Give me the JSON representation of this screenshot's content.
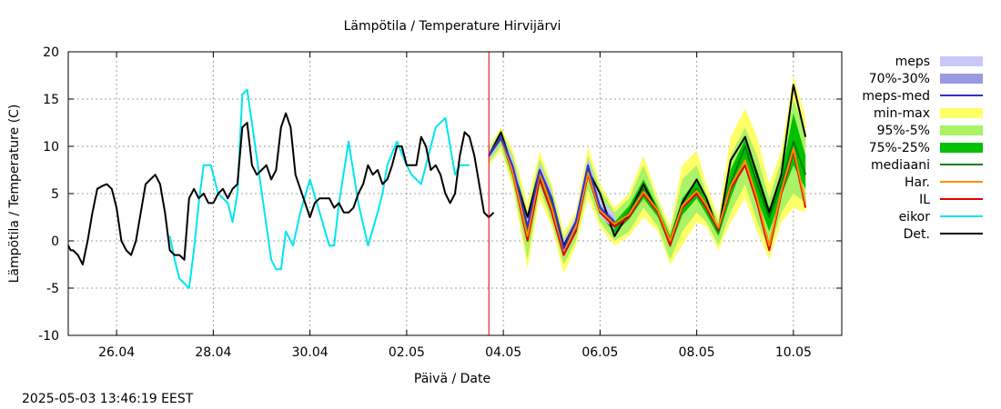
{
  "chart_data": {
    "type": "line",
    "title": "Lämpötila / Temperature   Hirvijärvi",
    "xlabel": "Päivä / Date",
    "ylabel": "Lämpötila / Temperature (C)",
    "ylim": [
      -10,
      20
    ],
    "yticks": [
      -10,
      -5,
      0,
      5,
      10,
      15,
      20
    ],
    "xlim": [
      0,
      16
    ],
    "xticks": [
      {
        "x": 1,
        "label": "26.04"
      },
      {
        "x": 3,
        "label": "28.04"
      },
      {
        "x": 5,
        "label": "30.04"
      },
      {
        "x": 7,
        "label": "02.05"
      },
      {
        "x": 9,
        "label": "04.05"
      },
      {
        "x": 11,
        "label": "06.05"
      },
      {
        "x": 13,
        "label": "08.05"
      },
      {
        "x": 15,
        "label": "10.05"
      }
    ],
    "grid": true,
    "legend_position": "right",
    "now_marker_x": 8.7,
    "timestamp": "2025-05-03 13:46:19 EEST",
    "legend": [
      {
        "label": "meps",
        "type": "box",
        "color": "#c8c8f8"
      },
      {
        "label": "70%-30%",
        "type": "box",
        "color": "#9a9ae0"
      },
      {
        "label": "meps-med",
        "type": "line",
        "color": "#3232c8"
      },
      {
        "label": "min-max",
        "type": "box",
        "color": "#ffff66"
      },
      {
        "label": "95%-5%",
        "type": "box",
        "color": "#aaf266"
      },
      {
        "label": "75%-25%",
        "type": "box",
        "color": "#00c000"
      },
      {
        "label": "mediaani",
        "type": "line",
        "color": "#008000"
      },
      {
        "label": "Har.",
        "type": "line",
        "color": "#ff8c00"
      },
      {
        "label": "IL",
        "type": "line",
        "color": "#e00000"
      },
      {
        "label": "eikor",
        "type": "line",
        "color": "#00e5ee"
      },
      {
        "label": "Det.",
        "type": "line",
        "color": "#000000"
      }
    ],
    "series": [
      {
        "name": "eikor",
        "color": "#00e5ee",
        "x": [
          2.1,
          2.2,
          2.3,
          2.5,
          2.6,
          2.7,
          2.8,
          2.95,
          3.1,
          3.3,
          3.4,
          3.5,
          3.6,
          3.7,
          4.2,
          4.3,
          4.4,
          4.5,
          4.65,
          4.8,
          5.0,
          5.4,
          5.5,
          5.6,
          5.8,
          6.0,
          6.2,
          6.4,
          6.5,
          6.6,
          6.8,
          7.0,
          7.1,
          7.3,
          7.4,
          7.6,
          7.8,
          8.0,
          8.1,
          8.3
        ],
        "y": [
          0.5,
          -2,
          -4,
          -5,
          -1,
          4,
          8,
          8,
          5,
          4,
          2,
          5,
          15.5,
          16,
          -2,
          -3,
          -3,
          1,
          -0.5,
          3,
          6.5,
          -0.5,
          -0.5,
          4,
          10.5,
          4,
          -0.5,
          3,
          5,
          8,
          10.5,
          8,
          7,
          6,
          8,
          12,
          13,
          7,
          8,
          8
        ]
      },
      {
        "name": "Det.",
        "color": "#000000",
        "x": [
          0,
          0.05,
          0.1,
          0.2,
          0.3,
          0.4,
          0.5,
          0.6,
          0.7,
          0.8,
          0.9,
          1.0,
          1.1,
          1.2,
          1.3,
          1.4,
          1.5,
          1.6,
          1.7,
          1.8,
          1.9,
          2.0,
          2.1,
          2.2,
          2.3,
          2.4,
          2.5,
          2.6,
          2.7,
          2.8,
          2.9,
          3.0,
          3.1,
          3.2,
          3.3,
          3.4,
          3.5,
          3.6,
          3.7,
          3.8,
          3.9,
          4.0,
          4.1,
          4.2,
          4.3,
          4.4,
          4.5,
          4.6,
          4.7,
          4.8,
          4.9,
          5.0,
          5.1,
          5.2,
          5.3,
          5.4,
          5.5,
          5.6,
          5.7,
          5.8,
          5.9,
          6.0,
          6.1,
          6.2,
          6.3,
          6.4,
          6.5,
          6.6,
          6.7,
          6.8,
          6.9,
          7.0,
          7.1,
          7.2,
          7.3,
          7.4,
          7.5,
          7.6,
          7.7,
          7.8,
          7.9,
          8.0,
          8.1,
          8.2,
          8.3,
          8.4,
          8.5,
          8.6,
          8.7,
          8.8
        ],
        "y": [
          -0.5,
          -1,
          -1,
          -1.5,
          -2.5,
          0,
          3,
          5.5,
          5.8,
          6,
          5.5,
          3.5,
          0,
          -1,
          -1.5,
          0,
          3,
          6,
          6.5,
          7,
          6,
          3,
          -1,
          -1.5,
          -1.5,
          -2,
          4.5,
          5.5,
          4.5,
          5,
          4,
          4,
          5,
          5.5,
          4.5,
          5.5,
          6,
          12,
          12.5,
          8,
          7,
          7.5,
          8,
          6.5,
          7.5,
          12,
          13.5,
          12,
          7,
          5.5,
          4,
          2.5,
          4,
          4.5,
          4.5,
          4.5,
          3.5,
          4,
          3,
          3,
          3.5,
          5,
          6,
          8,
          7,
          7.5,
          6,
          6.5,
          8,
          10,
          10,
          8,
          8,
          8,
          11,
          10,
          7.5,
          8,
          7,
          5,
          4,
          5,
          9,
          11.5,
          11,
          9,
          6,
          3,
          2.5,
          3
        ]
      },
      {
        "name": "Det.",
        "color": "#000000",
        "x": [
          8.7,
          8.95,
          9.2,
          9.5,
          9.75,
          10.0,
          10.25,
          10.5,
          10.75,
          11.0,
          11.3,
          11.6,
          11.9,
          12.2,
          12.45,
          12.7,
          13.0,
          13.2,
          13.45,
          13.7,
          14.0,
          14.25,
          14.5,
          14.75,
          15.0,
          15.25
        ],
        "y": [
          9,
          11.5,
          7.5,
          2.5,
          7.5,
          4.5,
          -0.5,
          2,
          7.5,
          5,
          0.5,
          3,
          6,
          3,
          0,
          4,
          6.5,
          4.5,
          1,
          8.5,
          11,
          7,
          3,
          7,
          16.5,
          11
        ]
      },
      {
        "name": "mediaani",
        "color": "#008000",
        "x": [
          8.7,
          8.95,
          9.2,
          9.5,
          9.75,
          10.0,
          10.25,
          10.5,
          10.75,
          11.0,
          11.3,
          11.6,
          11.9,
          12.2,
          12.45,
          12.7,
          13.0,
          13.2,
          13.45,
          13.7,
          14.0,
          14.25,
          14.5,
          14.75,
          15.0,
          15.25
        ],
        "y": [
          9,
          10.8,
          7.5,
          1,
          7,
          4,
          -1,
          1.5,
          7.5,
          3.5,
          1.5,
          3,
          5.5,
          3,
          0,
          3.5,
          5.5,
          3.5,
          1,
          6,
          10,
          6,
          2.5,
          6,
          10.5,
          7
        ]
      },
      {
        "name": "IL",
        "color": "#e00000",
        "x": [
          8.7,
          8.95,
          9.2,
          9.5,
          9.75,
          10.0,
          10.25,
          10.5,
          10.75,
          11.0,
          11.3,
          11.6,
          11.9,
          12.2,
          12.45,
          12.7,
          13.0,
          13.2,
          13.45,
          13.7,
          14.0,
          14.25,
          14.5,
          14.75,
          15.0,
          15.25
        ],
        "y": [
          9,
          11,
          7,
          0,
          6.5,
          3,
          -1.5,
          1,
          7,
          3,
          1.5,
          2.5,
          5,
          3,
          -0.5,
          3.5,
          5,
          3.5,
          1.2,
          5.5,
          8,
          4,
          -1,
          5,
          9.5,
          3.5
        ]
      },
      {
        "name": "Har.",
        "color": "#ff8c00",
        "x": [
          8.7,
          8.95,
          9.2,
          9.5,
          9.75,
          10.0,
          10.25,
          10.5,
          10.75,
          11.0,
          11.3,
          11.6,
          11.9,
          12.2,
          12.45,
          12.7,
          13.0,
          13.2,
          13.45,
          13.7,
          14.0,
          14.25,
          14.5,
          14.75,
          15.0,
          15.25
        ],
        "y": [
          9,
          11,
          7.2,
          0.5,
          7.2,
          3.5,
          -1,
          1.5,
          7.2,
          3.2,
          1.8,
          2.8,
          5.2,
          3.2,
          0,
          3.7,
          5.3,
          3.8,
          1.4,
          5.8,
          8.5,
          4.5,
          -0.5,
          5.3,
          9.8,
          4
        ]
      },
      {
        "name": "meps-med",
        "color": "#3232c8",
        "x": [
          8.7,
          8.95,
          9.2,
          9.5,
          9.75,
          10.0,
          10.25,
          10.5,
          10.75,
          11.0,
          11.3
        ],
        "y": [
          9,
          11,
          7.8,
          1.5,
          7.5,
          4.5,
          -0.8,
          2,
          8,
          3.5,
          2
        ]
      }
    ],
    "bands": [
      {
        "name": "min-max",
        "color": "#ffff66",
        "x": [
          8.7,
          8.95,
          9.2,
          9.5,
          9.75,
          10.0,
          10.25,
          10.5,
          10.75,
          11.0,
          11.3,
          11.6,
          11.9,
          12.2,
          12.45,
          12.7,
          13.0,
          13.2,
          13.45,
          13.7,
          14.0,
          14.25,
          14.5,
          14.75,
          15.0,
          15.25
        ],
        "upper": [
          10,
          12,
          9.5,
          4,
          9.5,
          6,
          1,
          3,
          10,
          6,
          3.5,
          5,
          9,
          4.5,
          1.5,
          8,
          9.5,
          6,
          2.5,
          11,
          14,
          11,
          6,
          9.5,
          17.5,
          13
        ],
        "lower": [
          8,
          9.5,
          5.5,
          -3,
          4.5,
          1.5,
          -3.5,
          -0.5,
          4.5,
          1.5,
          -0.5,
          0.5,
          2.5,
          1,
          -2.5,
          -0.5,
          2,
          1.5,
          -1,
          2,
          4.5,
          1,
          -2,
          2,
          3.5,
          3
        ]
      },
      {
        "name": "95%-5%",
        "color": "#aaf266",
        "x": [
          8.7,
          8.95,
          9.2,
          9.5,
          9.75,
          10.0,
          10.25,
          10.5,
          10.75,
          11.0,
          11.3,
          11.6,
          11.9,
          12.2,
          12.45,
          12.7,
          13.0,
          13.2,
          13.45,
          13.7,
          14.0,
          14.25,
          14.5,
          14.75,
          15.0,
          15.25
        ],
        "upper": [
          9.7,
          11.7,
          9,
          3,
          8.7,
          5.5,
          0.3,
          2.5,
          9,
          5.5,
          3,
          4.5,
          8,
          4,
          1,
          6.5,
          8,
          5,
          2,
          9,
          12,
          9,
          4.5,
          8.5,
          15,
          11.5
        ],
        "lower": [
          8.3,
          10,
          6,
          -2,
          5.5,
          2,
          -2.5,
          0,
          5.5,
          2,
          0,
          1,
          3.5,
          1.5,
          -2,
          1,
          3,
          2,
          -0.5,
          3,
          6,
          2,
          -1,
          3,
          5,
          4
        ]
      },
      {
        "name": "75%-25%",
        "color": "#00c000",
        "x": [
          8.7,
          8.95,
          9.2,
          9.5,
          9.75,
          10.0,
          10.25,
          10.5,
          10.75,
          11.0,
          11.3,
          11.6,
          11.9,
          12.2,
          12.45,
          12.7,
          13.0,
          13.2,
          13.45,
          13.7,
          14.0,
          14.25,
          14.5,
          14.75,
          15.0,
          15.25
        ],
        "upper": [
          9.3,
          11.3,
          8.2,
          2,
          7.8,
          4.8,
          -0.5,
          2,
          8.2,
          4.5,
          2,
          3.7,
          6.5,
          3.5,
          0.5,
          4.5,
          6.5,
          4.2,
          1.5,
          7.5,
          10.8,
          7.5,
          3.5,
          7,
          13.5,
          9
        ],
        "lower": [
          8.7,
          10.4,
          6.8,
          0,
          6.3,
          3.2,
          -1.5,
          1,
          6.8,
          2.8,
          0.8,
          2.3,
          4.5,
          2.5,
          -0.7,
          2.7,
          4.5,
          2.8,
          0.5,
          4.5,
          8.5,
          4.5,
          1,
          4.8,
          8,
          5.5
        ]
      },
      {
        "name": "meps",
        "color": "#c8c8f8",
        "x": [
          8.7,
          8.95,
          9.2,
          9.5,
          9.75,
          10.0,
          10.25,
          10.5,
          10.75,
          11.0,
          11.3
        ],
        "upper": [
          9.5,
          11.6,
          8.5,
          2.5,
          8.2,
          5.2,
          0,
          2.6,
          8.8,
          4.5,
          2.8
        ],
        "lower": [
          8.5,
          10.4,
          7,
          0.5,
          6.8,
          3.8,
          -1.6,
          1.4,
          7.2,
          2.6,
          1.2
        ]
      },
      {
        "name": "70%-30%",
        "color": "#9a9ae0",
        "x": [
          8.7,
          8.95,
          9.2,
          9.5,
          9.75,
          10.0,
          10.25,
          10.5,
          10.75,
          11.0,
          11.3
        ],
        "upper": [
          9.2,
          11.3,
          8.1,
          1.9,
          7.8,
          4.8,
          -0.5,
          2.2,
          8.3,
          3.9,
          2.3
        ],
        "lower": [
          8.8,
          10.7,
          7.5,
          1.1,
          7.2,
          4.2,
          -1.1,
          1.8,
          7.7,
          3.1,
          1.7
        ]
      }
    ]
  }
}
